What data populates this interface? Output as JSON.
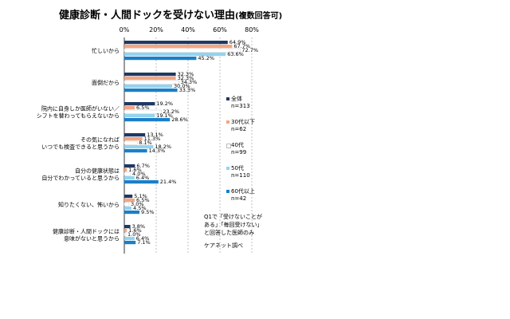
{
  "chart_data": {
    "type": "bar",
    "orientation": "horizontal",
    "title": "健康診断・人間ドックを受けない理由",
    "subtitle": "(複数回答可)",
    "x_ticks": [
      "0%",
      "20%",
      "40%",
      "60%",
      "80%"
    ],
    "xlim": [
      0,
      80
    ],
    "grid": true,
    "legend_position": "right",
    "categories": [
      "忙しいから",
      "面倒だから",
      "院内に自身しか医師がいない／シフトを替わってもらえないから",
      "その気になればいつでも検査できると思うから",
      "自分の健康状態は自分でわかっていると思うから",
      "知りたくない、怖いから",
      "健康診断・人間ドックには意味がないと思うから"
    ],
    "category_lines": [
      [
        "忙しいから"
      ],
      [
        "面倒だから"
      ],
      [
        "院内に自身しか医師がいない／",
        "シフトを替わってもらえないから"
      ],
      [
        "その気になれば",
        "いつでも検査できると思うから"
      ],
      [
        "自分の健康状態は",
        "自分でわかっていると思うから"
      ],
      [
        "知りたくない、怖いから"
      ],
      [
        "健康診断・人間ドックには",
        "意味がないと思うから"
      ]
    ],
    "series": [
      {
        "name": "全体",
        "n": "n=313",
        "color": "#1f3864",
        "values": [
          64.9,
          32.3,
          19.2,
          13.1,
          6.7,
          5.1,
          3.8
        ]
      },
      {
        "name": "30代以下",
        "n": "n=62",
        "color": "#f4a582",
        "values": [
          67.7,
          32.3,
          6.5,
          11.3,
          1.6,
          6.5,
          1.6
        ]
      },
      {
        "name": "40代",
        "n": "n=99",
        "color": "#ffffff",
        "values": [
          72.7,
          34.3,
          23.2,
          8.1,
          4.0,
          3.0,
          1.0
        ]
      },
      {
        "name": "50代",
        "n": "n=110",
        "color": "#92d4f0",
        "values": [
          63.6,
          30.0,
          19.1,
          18.2,
          6.4,
          4.5,
          6.4
        ]
      },
      {
        "name": "60代以上",
        "n": "n=42",
        "color": "#1a7fc9",
        "values": [
          45.2,
          33.3,
          28.6,
          14.3,
          21.4,
          9.5,
          7.1
        ]
      }
    ],
    "notes": [
      "Q1で「受けないことが",
      "ある」「毎回受けない」",
      "と回答した医師のみ",
      "ケアネット調べ"
    ]
  }
}
